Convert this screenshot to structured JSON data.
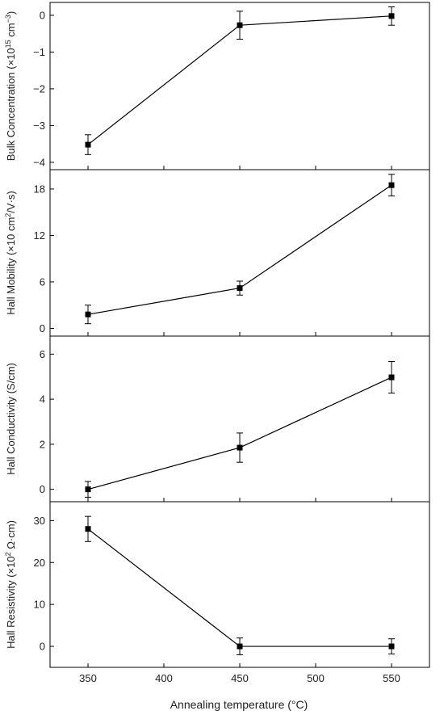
{
  "chart_data": [
    {
      "type": "line",
      "ylabel": "Bulk Concentration (×10¹⁵ cm⁻³)",
      "ylabel_parts": {
        "pre": "Bulk Concentration (×10",
        "sup1": "15",
        "mid": " cm",
        "sup2": "−3",
        "post": ")"
      },
      "x": [
        350,
        450,
        550
      ],
      "values": [
        -3.52,
        -0.27,
        -0.02
      ],
      "errors": [
        0.27,
        0.38,
        0.25
      ],
      "ylim": [
        -4.2,
        0.35
      ],
      "yticks": [
        0,
        -1,
        -2,
        -3,
        -4
      ],
      "ytick_labels": [
        "0",
        "−1",
        "−2",
        "−3",
        "−4"
      ]
    },
    {
      "type": "line",
      "ylabel": "Hall Mobility (×10 cm²/V·s)",
      "ylabel_parts": {
        "pre": "Hall Mobility (×10 cm",
        "sup1": "2",
        "mid": "/V·s)",
        "sup2": "",
        "post": ""
      },
      "x": [
        350,
        450,
        550
      ],
      "values": [
        1.8,
        5.2,
        18.5
      ],
      "errors": [
        1.2,
        0.9,
        1.4
      ],
      "ylim": [
        -1.0,
        20.5
      ],
      "yticks": [
        0,
        6,
        12,
        18
      ],
      "ytick_labels": [
        "0",
        "6",
        "12",
        "18"
      ]
    },
    {
      "type": "line",
      "ylabel": "Hall Conductivity (S/cm)",
      "ylabel_parts": {
        "pre": "Hall Conductivity (S/cm)",
        "sup1": "",
        "mid": "",
        "sup2": "",
        "post": ""
      },
      "x": [
        350,
        450,
        550
      ],
      "values": [
        0.0,
        1.85,
        4.97
      ],
      "errors": [
        0.35,
        0.65,
        0.7
      ],
      "ylim": [
        -0.55,
        6.8
      ],
      "yticks": [
        0,
        2,
        4,
        6
      ],
      "ytick_labels": [
        "0",
        "2",
        "4",
        "6"
      ]
    },
    {
      "type": "line",
      "ylabel": "Hall Resistivity (×10² Ω·cm)",
      "ylabel_parts": {
        "pre": "Hall Resistivity (×10",
        "sup1": "2",
        "mid": " Ω·cm)",
        "sup2": "",
        "post": ""
      },
      "x": [
        350,
        450,
        550
      ],
      "values": [
        28.0,
        0.0,
        0.0
      ],
      "errors": [
        3.0,
        2.0,
        1.8
      ],
      "ylim": [
        -5.0,
        34.5
      ],
      "yticks": [
        0,
        10,
        20,
        30
      ],
      "ytick_labels": [
        "0",
        "10",
        "20",
        "30"
      ]
    }
  ],
  "x_axis": {
    "label": "Annealing temperature (°C)",
    "xlim": [
      325,
      575
    ],
    "ticks": [
      350,
      400,
      450,
      500,
      550
    ],
    "tick_labels": [
      "350",
      "400",
      "450",
      "500",
      "550"
    ]
  },
  "style": {
    "line_color": "#000000",
    "marker": "square"
  }
}
